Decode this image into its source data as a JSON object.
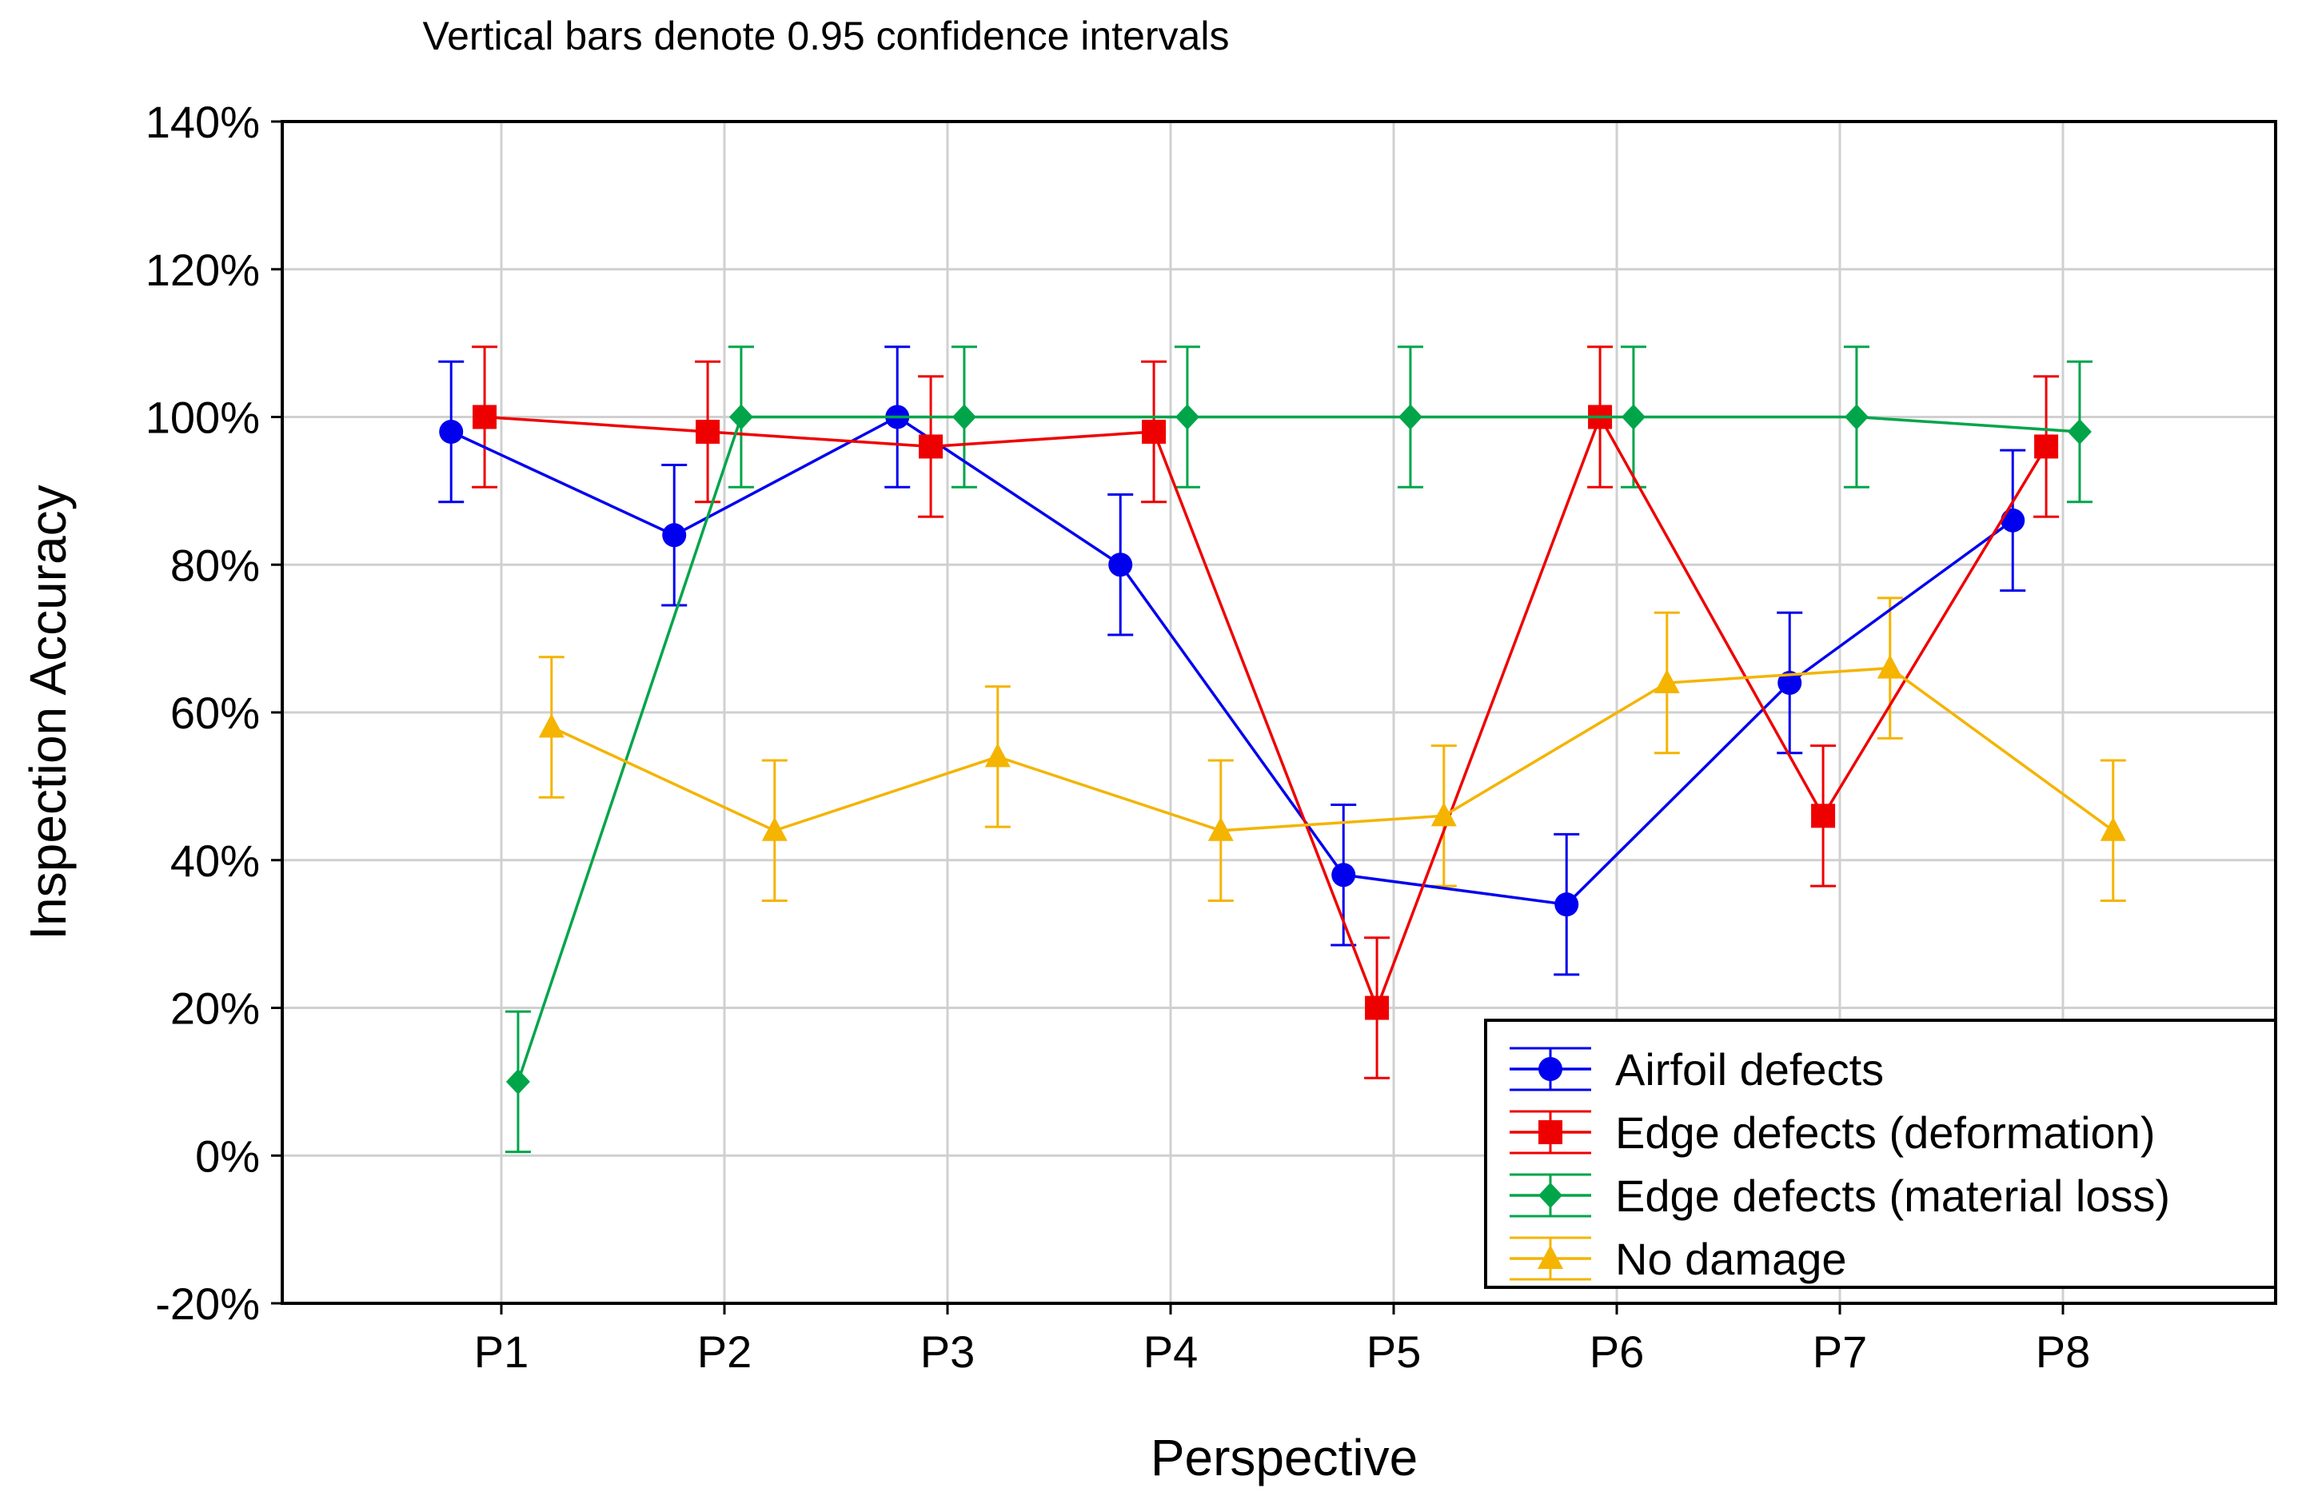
{
  "chart_data": {
    "type": "line",
    "title": "Vertical bars denote 0.95 confidence intervals",
    "xlabel": "Perspective",
    "ylabel": "Inspection Accuracy",
    "categories": [
      "P1",
      "P2",
      "P3",
      "P4",
      "P5",
      "P6",
      "P7",
      "P8"
    ],
    "ylim": [
      -20,
      140
    ],
    "yticks": [
      -20,
      0,
      20,
      40,
      60,
      80,
      100,
      120,
      140
    ],
    "ytick_labels": [
      "-20%",
      "0%",
      "20%",
      "40%",
      "60%",
      "80%",
      "100%",
      "120%",
      "140%"
    ],
    "grid": true,
    "error_bar_halfwidth": 9.5,
    "legend_position": "bottom-right",
    "series": [
      {
        "name": "Airfoil defects",
        "color": "#0000ee",
        "marker": "circle",
        "offset": -0.225,
        "values": [
          98,
          84,
          100,
          80,
          38,
          34,
          64,
          86
        ]
      },
      {
        "name": "Edge defects (deformation)",
        "color": "#ee0000",
        "marker": "square",
        "offset": -0.075,
        "values": [
          100,
          98,
          96,
          98,
          20,
          100,
          46,
          96
        ]
      },
      {
        "name": "Edge defects (material loss)",
        "color": "#00a54a",
        "marker": "diamond",
        "offset": 0.075,
        "values": [
          10,
          100,
          100,
          100,
          100,
          100,
          100,
          98
        ]
      },
      {
        "name": "No damage",
        "color": "#f4b400",
        "marker": "triangle",
        "offset": 0.225,
        "values": [
          58,
          44,
          54,
          44,
          46,
          64,
          66,
          44
        ]
      }
    ]
  }
}
